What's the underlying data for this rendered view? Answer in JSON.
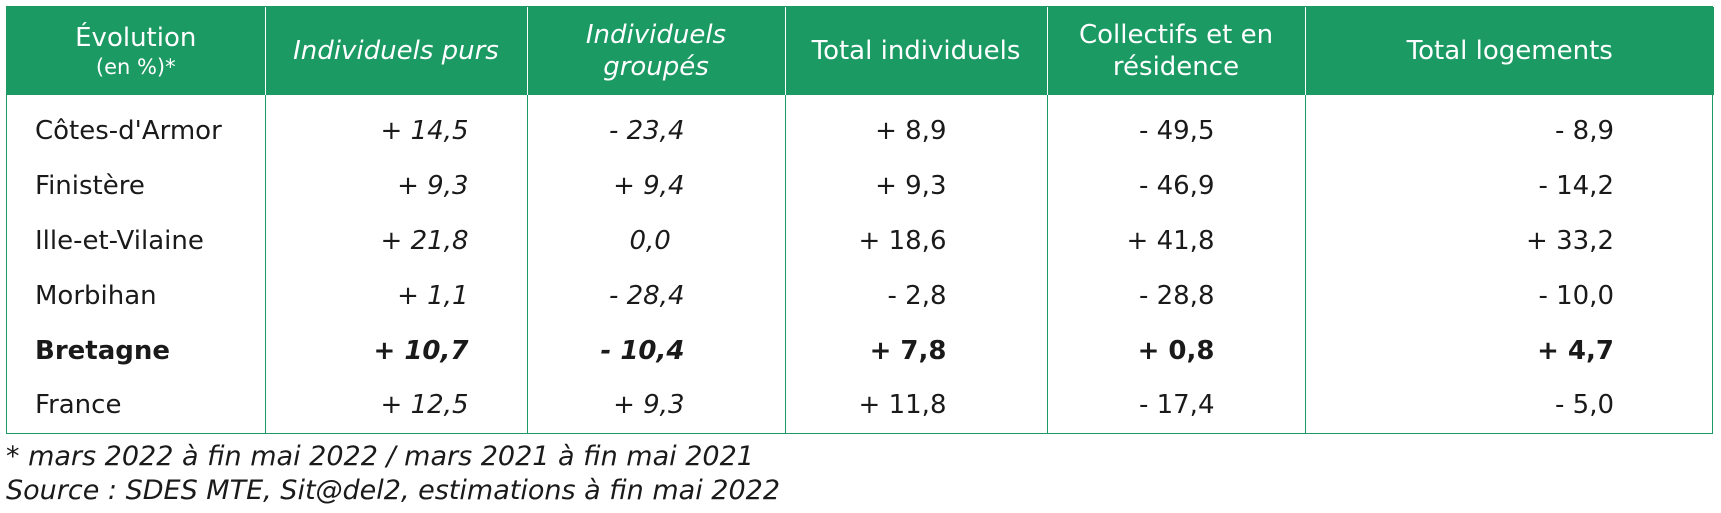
{
  "chart_data": {
    "type": "table",
    "columns": [
      {
        "label": "Évolution",
        "sublabel": "(en %)*"
      },
      {
        "label": "Individuels purs"
      },
      {
        "label": "Individuels groupés"
      },
      {
        "label": "Total individuels"
      },
      {
        "label": "Collectifs et en résidence"
      },
      {
        "label": "Total logements"
      }
    ],
    "rows": [
      {
        "name": "Côtes-d'Armor",
        "values": [
          "+ 14,5",
          "- 23,4",
          "+ 8,9",
          "- 49,5",
          "- 8,9"
        ]
      },
      {
        "name": "Finistère",
        "values": [
          "+ 9,3",
          "+ 9,4",
          "+ 9,3",
          "- 46,9",
          "- 14,2"
        ]
      },
      {
        "name": "Ille-et-Vilaine",
        "values": [
          "+ 21,8",
          "0,0",
          "+ 18,6",
          "+ 41,8",
          "+ 33,2"
        ]
      },
      {
        "name": "Morbihan",
        "values": [
          "+ 1,1",
          "- 28,4",
          "- 2,8",
          "- 28,8",
          "- 10,0"
        ]
      },
      {
        "name": "Bretagne",
        "bold": true,
        "values": [
          "+ 10,7",
          "- 10,4",
          "+ 7,8",
          "+ 0,8",
          "+ 4,7"
        ]
      },
      {
        "name": "France",
        "values": [
          "+ 12,5",
          "+ 9,3",
          "+ 11,8",
          "- 17,4",
          "- 5,0"
        ]
      }
    ],
    "notes": [
      "* mars 2022 à fin mai 2022 /  mars 2021 à fin mai 2021",
      "Source : SDES MTE, Sit@del2, estimations à fin mai 2022"
    ]
  },
  "colors": {
    "header_bg": "#1b9a63",
    "header_text": "#ffffff",
    "border": "#1b9a63"
  }
}
